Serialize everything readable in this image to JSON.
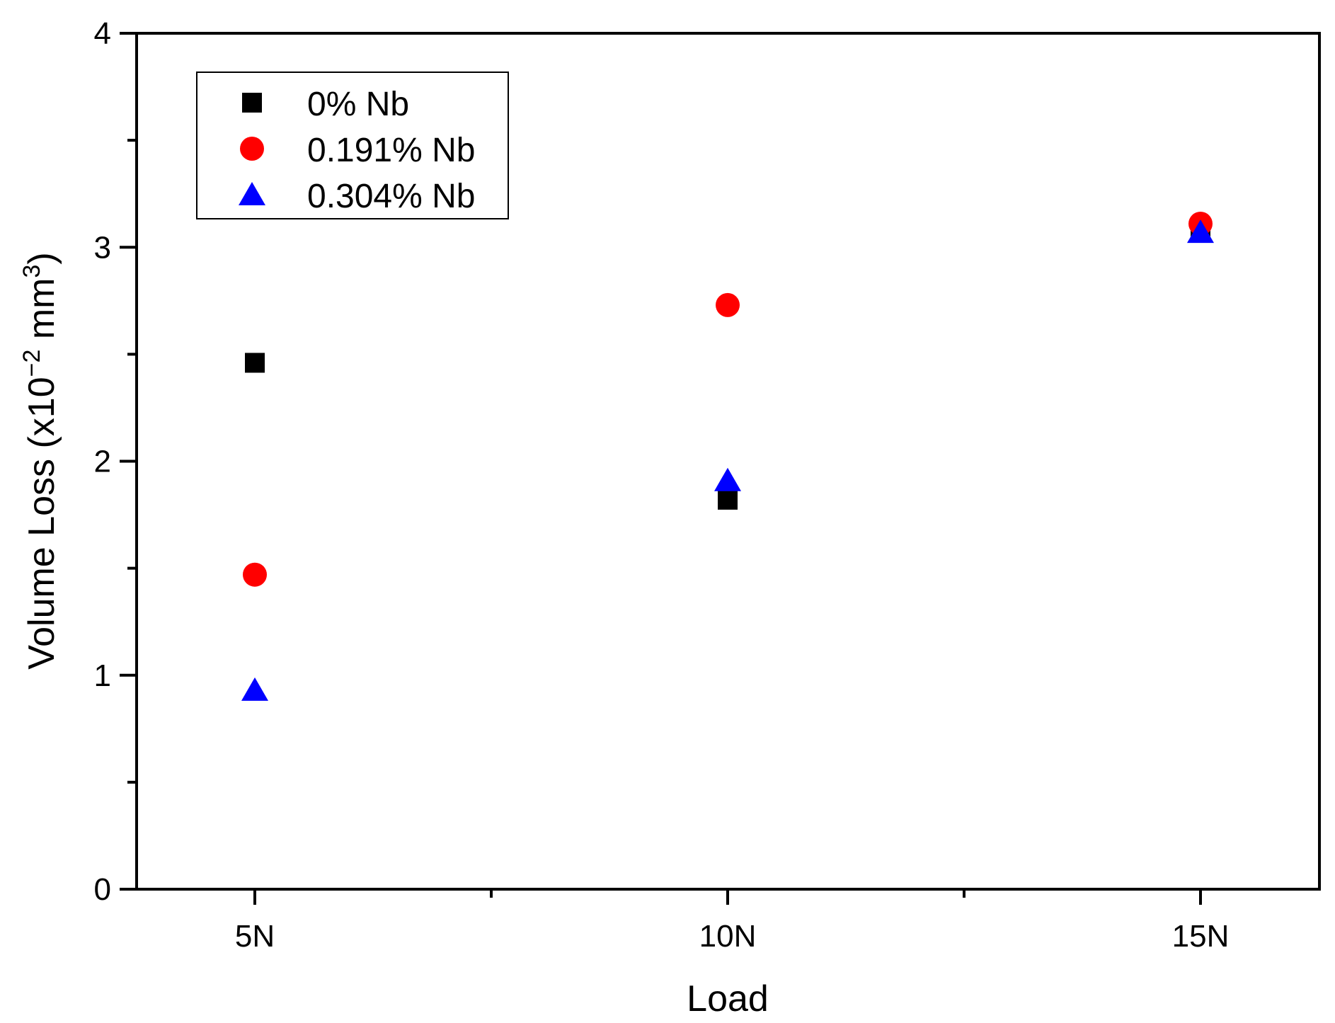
{
  "chart_data": {
    "type": "scatter",
    "xlabel": "Load",
    "ylabel": "Volume Loss (x10",
    "ylabel_exponent": "−2",
    "ylabel_unit": " mm",
    "ylabel_unit_exponent": "3",
    "ylabel_close": ")",
    "categories": [
      "5N",
      "10N",
      "15N"
    ],
    "ylim": [
      0,
      4
    ],
    "yticks": [
      "0",
      "1",
      "2",
      "3",
      "4"
    ],
    "legend_position": "top-left",
    "grid": false,
    "series": [
      {
        "name": "0% Nb",
        "marker": "square",
        "color": "#000000",
        "values": [
          2.46,
          1.82,
          3.07
        ]
      },
      {
        "name": "0.191% Nb",
        "marker": "circle",
        "color": "#ff0000",
        "values": [
          1.47,
          2.73,
          3.11
        ]
      },
      {
        "name": "0.304% Nb",
        "marker": "triangle",
        "color": "#0000ff",
        "values": [
          0.93,
          1.91,
          3.07
        ]
      }
    ]
  }
}
